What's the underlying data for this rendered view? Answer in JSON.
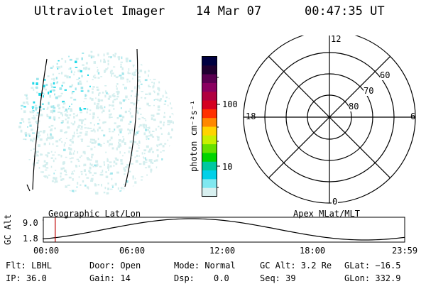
{
  "header": {
    "instrument": "Ultraviolet Imager",
    "date": "14 Mar 07",
    "time": "00:47:35 UT"
  },
  "colorbar": {
    "label": "photon cm⁻²s⁻¹",
    "ticks": [
      "100",
      "10"
    ],
    "colors": [
      "#000040",
      "#200030",
      "#5a0050",
      "#8a0060",
      "#b00040",
      "#d40020",
      "#ff3000",
      "#ff8800",
      "#ffd400",
      "#c8f000",
      "#66e000",
      "#00d400",
      "#00c8a0",
      "#00d0e8",
      "#80e8f0",
      "#d8f0f0"
    ]
  },
  "polar_plot": {
    "mlt_labels": {
      "top": "12",
      "right": "6",
      "bottom": "0",
      "left": "18"
    },
    "lat_labels": [
      "60",
      "70",
      "80"
    ]
  },
  "timeline": {
    "geo_label": "Geographic Lat/Lon",
    "apex_label": "Apex MLat/MLT",
    "y_axis_label": "GC Alt",
    "y_max": "9.0",
    "y_min": "1.8",
    "x_ticks": [
      "00:00",
      "06:00",
      "12:00",
      "18:00",
      "23:59"
    ],
    "current_time_fraction": 0.033,
    "line_color": "#c00000"
  },
  "info": {
    "flt": "Flt: LBHL",
    "ip": "IP: 36.0",
    "door": "Door: Open",
    "gain": "Gain: 14",
    "mode": "Mode: Normal",
    "dsp_label": "Dsp:",
    "dsp_value": "0.0",
    "gc_alt": "GC Alt: 3.2 Re",
    "seq": "Seq: 39",
    "glat": "GLat: −16.5",
    "glon": "GLon: 332.9"
  }
}
